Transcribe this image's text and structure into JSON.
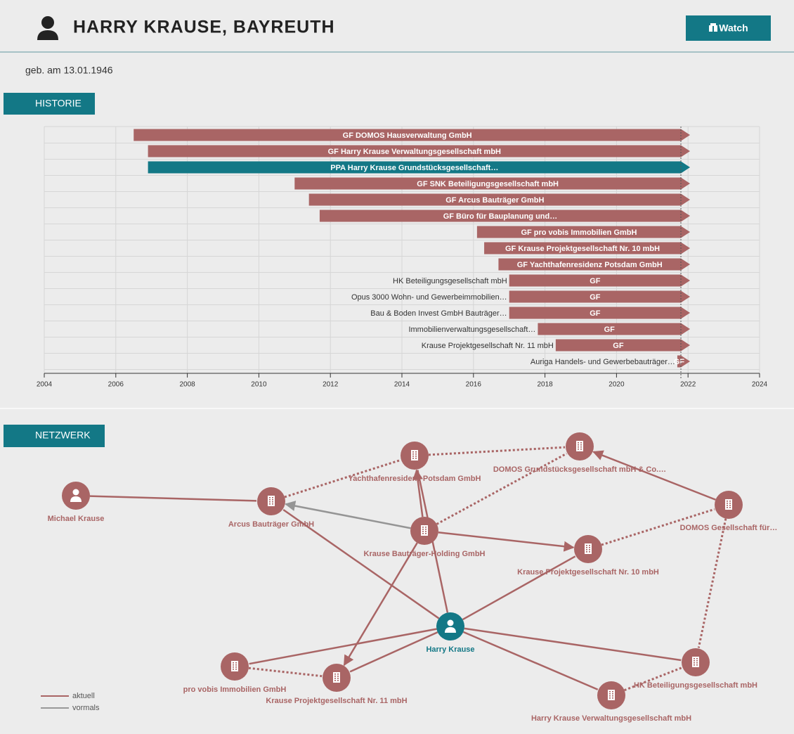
{
  "header": {
    "title": "HARRY KRAUSE, BAYREUTH",
    "button": "Watch",
    "subtitle": "geb. am 13.01.1946"
  },
  "historie": {
    "tab": "HISTORIE",
    "xlim": [
      2004,
      2024
    ],
    "xticks": [
      2004,
      2006,
      2008,
      2010,
      2012,
      2014,
      2016,
      2018,
      2020,
      2022,
      2024
    ],
    "today": 2021.8,
    "grid": true,
    "bars": [
      {
        "label": "GF DOMOS Hausverwaltung GmbH",
        "start": 2006.5,
        "color": "#a96565"
      },
      {
        "label": "GF Harry Krause Verwaltungsgesellschaft mbH",
        "start": 2006.9,
        "color": "#a96565"
      },
      {
        "label": "PPA Harry Krause Grundstücksgesellschaft…",
        "start": 2006.9,
        "color": "#137886"
      },
      {
        "label": "GF SNK Beteiligungsgesellschaft mbH",
        "start": 2011.0,
        "color": "#a96565"
      },
      {
        "label": "GF Arcus Bauträger GmbH",
        "start": 2011.4,
        "color": "#a96565"
      },
      {
        "label": "GF Büro für Bauplanung und…",
        "start": 2011.7,
        "color": "#a96565"
      },
      {
        "label": "GF pro vobis Immobilien GmbH",
        "start": 2016.1,
        "color": "#a96565"
      },
      {
        "label": "GF Krause Projektgesellschaft Nr. 10 mbH",
        "start": 2016.3,
        "color": "#a96565"
      },
      {
        "label": "GF Yachthafenresidenz Potsdam GmbH",
        "start": 2016.7,
        "color": "#a96565"
      },
      {
        "name": "HK Beteiligungsgesellschaft mbH",
        "label": "GF",
        "start": 2017.0,
        "color": "#a96565"
      },
      {
        "name": "Opus 3000 Wohn- und Gewerbeimmobilien…",
        "label": "GF",
        "start": 2017.0,
        "color": "#a96565"
      },
      {
        "name": "Bau & Boden Invest GmbH Bauträger…",
        "label": "GF",
        "start": 2017.0,
        "color": "#a96565"
      },
      {
        "name": "Immobilienverwaltungsgesellschaft…",
        "label": "GF",
        "start": 2017.8,
        "color": "#a96565"
      },
      {
        "name": "Krause Projektgesellschaft Nr. 11 mbH",
        "label": "GF",
        "start": 2018.3,
        "color": "#a96565"
      },
      {
        "name": "Auriga Handels- und Gewerbebauträger…",
        "label": "GF",
        "start": 2021.7,
        "color": "#a96565"
      }
    ]
  },
  "netzwerk": {
    "tab": "NETZWERK",
    "nodes": [
      {
        "label": "Michael Krause",
        "kind": "person"
      },
      {
        "label": "Arcus Bauträger GmbH",
        "kind": "company"
      },
      {
        "label": "Yachthafenresidenz Potsdam GmbH",
        "kind": "company"
      },
      {
        "label": "DOMOS Grundstücksgesellschaft mbH & Co.…",
        "kind": "company"
      },
      {
        "label": "DOMOS Gesellschaft für…",
        "kind": "company"
      },
      {
        "label": "Krause Bauträger-Holding GmbH",
        "kind": "company"
      },
      {
        "label": "Krause Projektgesellschaft Nr. 10 mbH",
        "kind": "company"
      },
      {
        "label": "Harry Krause",
        "kind": "focus"
      },
      {
        "label": "pro vobis Immobilien GmbH",
        "kind": "company"
      },
      {
        "label": "Krause Projektgesellschaft Nr. 11 mbH",
        "kind": "company"
      },
      {
        "label": "HK Beteiligungsgesellschaft mbH",
        "kind": "company"
      },
      {
        "label": "Harry Krause Verwaltungsgesellschaft mbH",
        "kind": "company"
      }
    ],
    "edges": [
      {
        "from": 0,
        "to": 1,
        "former": false,
        "dashed": false,
        "arrow": false
      },
      {
        "from": 7,
        "to": 1,
        "former": false,
        "dashed": false,
        "arrow": false
      },
      {
        "from": 5,
        "to": 1,
        "former": true,
        "dashed": false,
        "arrow": true
      },
      {
        "from": 5,
        "to": 2,
        "former": false,
        "dashed": false,
        "arrow": true
      },
      {
        "from": 7,
        "to": 2,
        "former": false,
        "dashed": false,
        "arrow": false
      },
      {
        "from": 5,
        "to": 6,
        "former": false,
        "dashed": false,
        "arrow": true
      },
      {
        "from": 7,
        "to": 6,
        "former": false,
        "dashed": false,
        "arrow": false
      },
      {
        "from": 5,
        "to": 9,
        "former": false,
        "dashed": false,
        "arrow": true
      },
      {
        "from": 7,
        "to": 9,
        "former": false,
        "dashed": false,
        "arrow": false
      },
      {
        "from": 7,
        "to": 8,
        "former": false,
        "dashed": false,
        "arrow": false
      },
      {
        "from": 7,
        "to": 10,
        "former": false,
        "dashed": false,
        "arrow": false
      },
      {
        "from": 7,
        "to": 11,
        "former": false,
        "dashed": false,
        "arrow": false
      },
      {
        "from": 4,
        "to": 3,
        "former": false,
        "dashed": false,
        "arrow": true
      },
      {
        "from": 1,
        "to": 2,
        "former": false,
        "dashed": true,
        "arrow": false
      },
      {
        "from": 2,
        "to": 3,
        "former": false,
        "dashed": true,
        "arrow": false
      },
      {
        "from": 5,
        "to": 3,
        "former": false,
        "dashed": true,
        "arrow": false
      },
      {
        "from": 6,
        "to": 4,
        "former": false,
        "dashed": true,
        "arrow": false
      },
      {
        "from": 4,
        "to": 10,
        "former": false,
        "dashed": true,
        "arrow": false
      },
      {
        "from": 8,
        "to": 9,
        "former": false,
        "dashed": true,
        "arrow": false
      },
      {
        "from": 11,
        "to": 10,
        "former": false,
        "dashed": true,
        "arrow": false
      }
    ],
    "legend": {
      "current": "aktuell",
      "former": "vormals"
    }
  }
}
